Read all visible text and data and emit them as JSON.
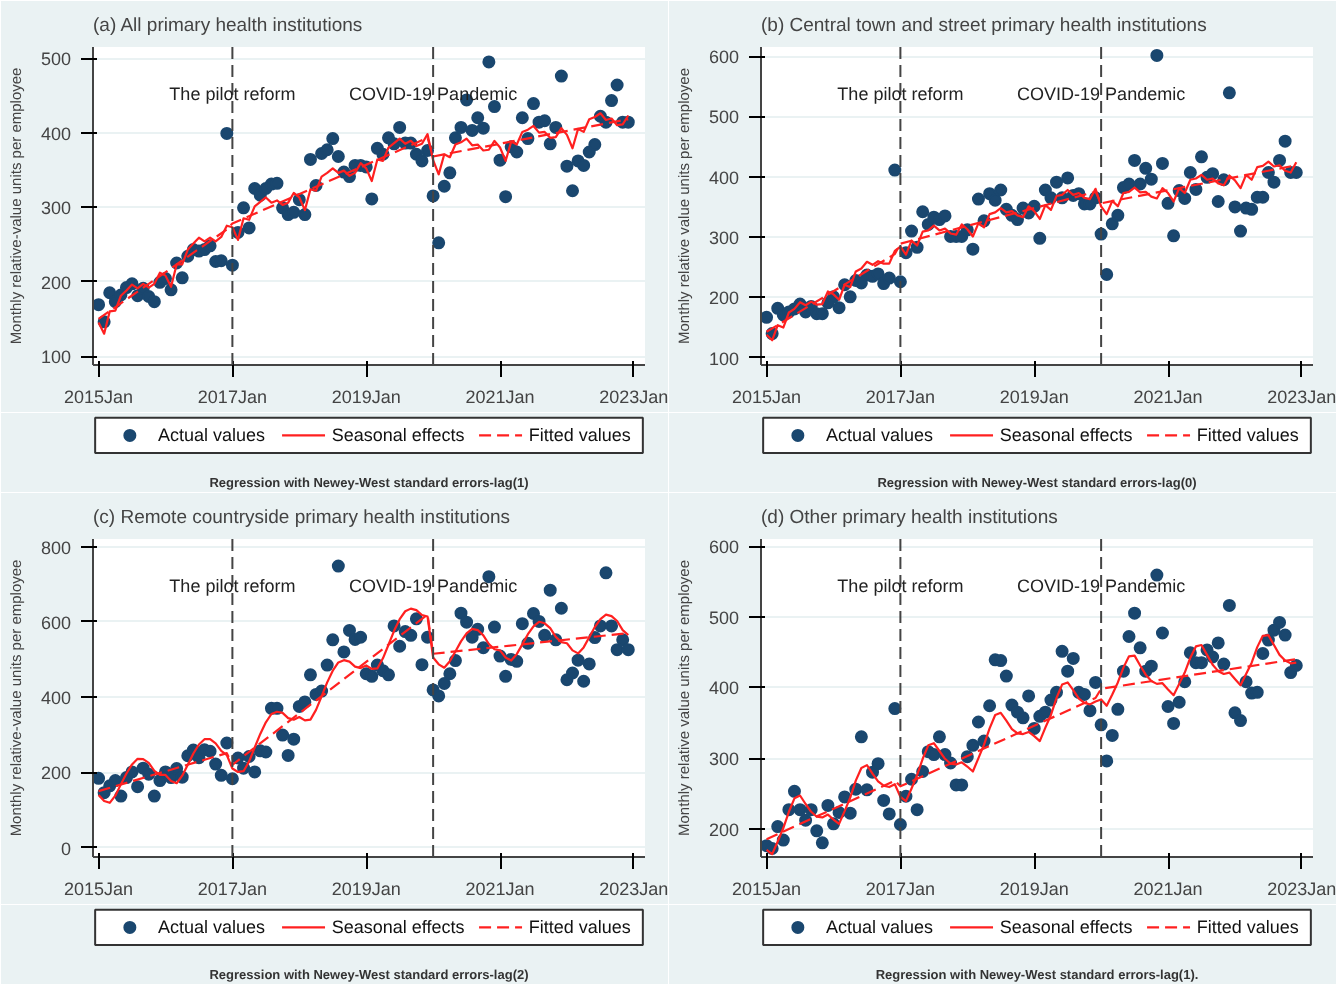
{
  "chart_data": [
    {
      "type": "scatter",
      "title": "(a) All primary health institutions",
      "ylabel": "Monthly relative-value units per employee",
      "annotations": [
        "Regression with Newey-West standard errors-lag(1)"
      ],
      "x": [
        "2015-01",
        "2015-02",
        "2015-03",
        "2015-04",
        "2015-05",
        "2015-06",
        "2015-07",
        "2015-08",
        "2015-09",
        "2015-10",
        "2015-11",
        "2015-12",
        "2016-01",
        "2016-02",
        "2016-03",
        "2016-04",
        "2016-05",
        "2016-06",
        "2016-07",
        "2016-08",
        "2016-09",
        "2016-10",
        "2016-11",
        "2016-12",
        "2017-01",
        "2017-02",
        "2017-03",
        "2017-04",
        "2017-05",
        "2017-06",
        "2017-07",
        "2017-08",
        "2017-09",
        "2017-10",
        "2017-11",
        "2017-12",
        "2018-01",
        "2018-02",
        "2018-03",
        "2018-04",
        "2018-05",
        "2018-06",
        "2018-07",
        "2018-08",
        "2018-09",
        "2018-10",
        "2018-11",
        "2018-12",
        "2019-01",
        "2019-02",
        "2019-03",
        "2019-04",
        "2019-05",
        "2019-06",
        "2019-07",
        "2019-08",
        "2019-09",
        "2019-10",
        "2019-11",
        "2019-12",
        "2020-01",
        "2020-02",
        "2020-03",
        "2020-04",
        "2020-05",
        "2020-06",
        "2020-07",
        "2020-08",
        "2020-09",
        "2020-10",
        "2020-11",
        "2020-12",
        "2021-01",
        "2021-02",
        "2021-03",
        "2021-04",
        "2021-05",
        "2021-06",
        "2021-07",
        "2021-08",
        "2021-09",
        "2021-10",
        "2021-11",
        "2021-12",
        "2022-01",
        "2022-02",
        "2022-03",
        "2022-04",
        "2022-05",
        "2022-06",
        "2022-07",
        "2022-08",
        "2022-09",
        "2022-10",
        "2022-11",
        "2022-12"
      ],
      "series": [
        {
          "name": "Actual values",
          "marker": "circle",
          "color": "#1a476f",
          "values": [
            169,
            146,
            185,
            173,
            182,
            192,
            197,
            181,
            191,
            180,
            173,
            199,
            204,
            189,
            225,
            205,
            234,
            243,
            241,
            243,
            248,
            227,
            228,
            399,
            222,
            266,
            299,
            272,
            325,
            316,
            325,
            331,
            332,
            299,
            290,
            293,
            310,
            290,
            364,
            329,
            372,
            377,
            392,
            368,
            347,
            341,
            356,
            356,
            354,
            311,
            379,
            371,
            393,
            385,
            407,
            386,
            386,
            371,
            362,
            376,
            315,
            252,
            328,
            346,
            393,
            407,
            444,
            403,
            420,
            406,
            495,
            435,
            363,
            314,
            381,
            374,
            420,
            392,
            439,
            414,
            416,
            385,
            407,
            476,
            355,
            322,
            362,
            356,
            374,
            384,
            422,
            414,
            443,
            464,
            414,
            414
          ]
        },
        {
          "name": "Seasonal effects",
          "type": "line",
          "line_style": "solid",
          "color": "#ff2020",
          "values": [
            145,
            130,
            160,
            161,
            181,
            188,
            196,
            191,
            197,
            192,
            197,
            212,
            208,
            193,
            223,
            223,
            243,
            251,
            259,
            254,
            259,
            254,
            260,
            275,
            273,
            256,
            285,
            283,
            301,
            307,
            313,
            306,
            309,
            303,
            306,
            319,
            313,
            296,
            324,
            322,
            341,
            346,
            352,
            346,
            349,
            342,
            346,
            359,
            352,
            335,
            364,
            362,
            380,
            386,
            392,
            385,
            389,
            382,
            385,
            398,
            363,
            344,
            371,
            367,
            384,
            387,
            392,
            383,
            384,
            376,
            377,
            389,
            380,
            362,
            388,
            384,
            401,
            404,
            409,
            400,
            401,
            393,
            394,
            406,
            397,
            379,
            405,
            401,
            418,
            421,
            426,
            417,
            419,
            410,
            411,
            423
          ]
        },
        {
          "name": "Fitted values",
          "type": "line",
          "line_style": "dashed",
          "color": "#ff2020",
          "x": [
            "2015-01",
            "2016-12",
            "2017-01",
            "2019-12",
            "2020-01",
            "2022-12"
          ],
          "values": [
            150,
            270,
            278,
            393,
            368,
            418
          ]
        }
      ],
      "xlim": [
        "2014-12",
        "2023-03"
      ],
      "xticks": [
        {
          "value": "2015-01",
          "label": "2015Jan"
        },
        {
          "value": "2017-01",
          "label": "2017Jan"
        },
        {
          "value": "2019-01",
          "label": "2019Jan"
        },
        {
          "value": "2021-01",
          "label": "2021Jan"
        },
        {
          "value": "2023-01",
          "label": "2023Jan"
        }
      ],
      "ylim": [
        88,
        515
      ],
      "yticks": [
        100,
        200,
        300,
        400,
        500
      ],
      "grid": "y",
      "legend": "bottom",
      "ref_lines": [
        {
          "axis": "x",
          "value": "2017-01",
          "label": "The pilot reform",
          "color": "#444444",
          "line_style": "dashed"
        },
        {
          "axis": "x",
          "value": "2020-01",
          "label": "COVID-19 Pandemic",
          "color": "#444444",
          "line_style": "dashed"
        }
      ]
    },
    {
      "type": "scatter",
      "title": "(b) Central town and street primary health institutions",
      "ylabel": "Monthly relative value units per employee",
      "annotations": [
        "Regression with Newey-West standard errors-lag(0)"
      ],
      "x": [
        "2015-01",
        "2015-02",
        "2015-03",
        "2015-04",
        "2015-05",
        "2015-06",
        "2015-07",
        "2015-08",
        "2015-09",
        "2015-10",
        "2015-11",
        "2015-12",
        "2016-01",
        "2016-02",
        "2016-03",
        "2016-04",
        "2016-05",
        "2016-06",
        "2016-07",
        "2016-08",
        "2016-09",
        "2016-10",
        "2016-11",
        "2016-12",
        "2017-01",
        "2017-02",
        "2017-03",
        "2017-04",
        "2017-05",
        "2017-06",
        "2017-07",
        "2017-08",
        "2017-09",
        "2017-10",
        "2017-11",
        "2017-12",
        "2018-01",
        "2018-02",
        "2018-03",
        "2018-04",
        "2018-05",
        "2018-06",
        "2018-07",
        "2018-08",
        "2018-09",
        "2018-10",
        "2018-11",
        "2018-12",
        "2019-01",
        "2019-02",
        "2019-03",
        "2019-04",
        "2019-05",
        "2019-06",
        "2019-07",
        "2019-08",
        "2019-09",
        "2019-10",
        "2019-11",
        "2019-12",
        "2020-01",
        "2020-02",
        "2020-03",
        "2020-04",
        "2020-05",
        "2020-06",
        "2020-07",
        "2020-08",
        "2020-09",
        "2020-10",
        "2020-11",
        "2020-12",
        "2021-01",
        "2021-02",
        "2021-03",
        "2021-04",
        "2021-05",
        "2021-06",
        "2021-07",
        "2021-08",
        "2021-09",
        "2021-10",
        "2021-11",
        "2021-12",
        "2022-01",
        "2022-02",
        "2022-03",
        "2022-04",
        "2022-05",
        "2022-06",
        "2022-07",
        "2022-08",
        "2022-09",
        "2022-10",
        "2022-11",
        "2022-12"
      ],
      "series": [
        {
          "name": "Actual values",
          "marker": "circle",
          "color": "#1a476f",
          "values": [
            167,
            140,
            182,
            171,
            176,
            181,
            189,
            176,
            185,
            173,
            173,
            191,
            201,
            183,
            221,
            201,
            228,
            224,
            237,
            235,
            239,
            223,
            232,
            411,
            226,
            274,
            310,
            283,
            342,
            321,
            333,
            329,
            335,
            301,
            301,
            301,
            312,
            280,
            363,
            327,
            372,
            361,
            378,
            346,
            336,
            329,
            348,
            340,
            351,
            298,
            378,
            365,
            391,
            365,
            398,
            369,
            372,
            355,
            355,
            365,
            305,
            238,
            322,
            336,
            382,
            388,
            427,
            388,
            414,
            396,
            601,
            422,
            356,
            302,
            377,
            364,
            407,
            379,
            433,
            399,
            405,
            359,
            395,
            539,
            350,
            310,
            348,
            346,
            366,
            366,
            407,
            391,
            427,
            459,
            407,
            407
          ]
        },
        {
          "name": "Seasonal effects",
          "type": "line",
          "line_style": "solid",
          "color": "#ff2020",
          "values": [
            138,
            129,
            154,
            150,
            175,
            181,
            192,
            187,
            193,
            188,
            189,
            210,
            205,
            196,
            221,
            217,
            243,
            248,
            259,
            254,
            260,
            256,
            256,
            277,
            284,
            271,
            294,
            286,
            309,
            311,
            319,
            311,
            314,
            306,
            304,
            321,
            313,
            301,
            323,
            316,
            338,
            341,
            348,
            341,
            343,
            336,
            333,
            351,
            343,
            330,
            353,
            345,
            368,
            370,
            378,
            370,
            373,
            365,
            363,
            380,
            351,
            338,
            360,
            351,
            373,
            375,
            382,
            374,
            375,
            367,
            364,
            381,
            373,
            359,
            381,
            373,
            395,
            397,
            403,
            395,
            397,
            389,
            386,
            402,
            394,
            381,
            403,
            395,
            416,
            418,
            425,
            417,
            419,
            410,
            407,
            424
          ]
        },
        {
          "name": "Fitted values",
          "type": "line",
          "line_style": "dashed",
          "color": "#ff2020",
          "x": [
            "2015-01",
            "2016-12",
            "2017-01",
            "2019-12",
            "2020-01",
            "2022-12"
          ],
          "values": [
            143,
            272,
            289,
            375,
            356,
            419
          ]
        }
      ],
      "xlim": [
        "2014-12",
        "2023-03"
      ],
      "xticks": [
        {
          "value": "2015-01",
          "label": "2015Jan"
        },
        {
          "value": "2017-01",
          "label": "2017Jan"
        },
        {
          "value": "2019-01",
          "label": "2019Jan"
        },
        {
          "value": "2021-01",
          "label": "2021Jan"
        },
        {
          "value": "2023-01",
          "label": "2023Jan"
        }
      ],
      "ylim": [
        88,
        615
      ],
      "yticks": [
        100,
        200,
        300,
        400,
        500,
        600
      ],
      "grid": "y",
      "legend": "bottom",
      "ref_lines": [
        {
          "axis": "x",
          "value": "2017-01",
          "label": "The pilot reform",
          "color": "#444444",
          "line_style": "dashed"
        },
        {
          "axis": "x",
          "value": "2020-01",
          "label": "COVID-19 Pandemic",
          "color": "#444444",
          "line_style": "dashed"
        }
      ]
    },
    {
      "type": "scatter",
      "title": "(c) Remote countryside primary health institutions",
      "ylabel": "Monthly relative-value units per employee",
      "annotations": [
        "Regression with Newey-West standard errors-lag(2)"
      ],
      "x": [
        "2015-01",
        "2015-02",
        "2015-03",
        "2015-04",
        "2015-05",
        "2015-06",
        "2015-07",
        "2015-08",
        "2015-09",
        "2015-10",
        "2015-11",
        "2015-12",
        "2016-01",
        "2016-02",
        "2016-03",
        "2016-04",
        "2016-05",
        "2016-06",
        "2016-07",
        "2016-08",
        "2016-09",
        "2016-10",
        "2016-11",
        "2016-12",
        "2017-01",
        "2017-02",
        "2017-03",
        "2017-04",
        "2017-05",
        "2017-06",
        "2017-07",
        "2017-08",
        "2017-09",
        "2017-10",
        "2017-11",
        "2017-12",
        "2018-01",
        "2018-02",
        "2018-03",
        "2018-04",
        "2018-05",
        "2018-06",
        "2018-07",
        "2018-08",
        "2018-09",
        "2018-10",
        "2018-11",
        "2018-12",
        "2019-01",
        "2019-02",
        "2019-03",
        "2019-04",
        "2019-05",
        "2019-06",
        "2019-07",
        "2019-08",
        "2019-09",
        "2019-10",
        "2019-11",
        "2019-12",
        "2020-01",
        "2020-02",
        "2020-03",
        "2020-04",
        "2020-05",
        "2020-06",
        "2020-07",
        "2020-08",
        "2020-09",
        "2020-10",
        "2020-11",
        "2020-12",
        "2021-01",
        "2021-02",
        "2021-03",
        "2021-04",
        "2021-05",
        "2021-06",
        "2021-07",
        "2021-08",
        "2021-09",
        "2021-10",
        "2021-11",
        "2021-12",
        "2022-01",
        "2022-02",
        "2022-03",
        "2022-04",
        "2022-05",
        "2022-06",
        "2022-07",
        "2022-08",
        "2022-09",
        "2022-10",
        "2022-11",
        "2022-12"
      ],
      "series": [
        {
          "name": "Actual values",
          "marker": "circle",
          "color": "#1a476f",
          "values": [
            184,
            146,
            164,
            178,
            137,
            186,
            201,
            162,
            211,
            195,
            137,
            178,
            201,
            186,
            210,
            187,
            244,
            259,
            239,
            260,
            256,
            222,
            192,
            278,
            183,
            238,
            211,
            242,
            201,
            257,
            254,
            370,
            370,
            299,
            245,
            288,
            375,
            387,
            459,
            407,
            416,
            485,
            552,
            748,
            520,
            577,
            553,
            559,
            462,
            455,
            485,
            470,
            459,
            589,
            535,
            574,
            564,
            608,
            486,
            559,
            419,
            403,
            436,
            462,
            497,
            623,
            599,
            559,
            580,
            531,
            720,
            586,
            509,
            455,
            500,
            495,
            595,
            543,
            622,
            601,
            564,
            684,
            552,
            636,
            446,
            464,
            498,
            442,
            488,
            558,
            589,
            730,
            589,
            526,
            552,
            526
          ]
        },
        {
          "name": "Seasonal effects",
          "type": "line",
          "line_style": "solid",
          "color": "#ff2020",
          "values": [
            140,
            124,
            119,
            138,
            168,
            197,
            221,
            236,
            235,
            225,
            204,
            193,
            193,
            177,
            171,
            191,
            220,
            250,
            274,
            288,
            288,
            277,
            257,
            246,
            210,
            201,
            203,
            229,
            266,
            302,
            333,
            355,
            361,
            358,
            344,
            340,
            347,
            338,
            340,
            366,
            402,
            439,
            470,
            492,
            498,
            494,
            481,
            477,
            484,
            475,
            476,
            503,
            539,
            576,
            607,
            628,
            635,
            631,
            618,
            614,
            505,
            487,
            478,
            495,
            521,
            548,
            569,
            581,
            578,
            564,
            541,
            527,
            524,
            505,
            497,
            514,
            540,
            567,
            588,
            600,
            596,
            583,
            560,
            546,
            543,
            524,
            516,
            532,
            559,
            586,
            607,
            619,
            615,
            602,
            578,
            565
          ]
        },
        {
          "name": "Fitted values",
          "type": "line",
          "line_style": "dashed",
          "color": "#ff2020",
          "x": [
            "2015-01",
            "2016-12",
            "2017-01",
            "2019-12",
            "2020-01",
            "2022-12"
          ],
          "values": [
            150,
            251,
            220,
            619,
            515,
            570
          ]
        }
      ],
      "xlim": [
        "2014-12",
        "2023-03"
      ],
      "xticks": [
        {
          "value": "2015-01",
          "label": "2015Jan"
        },
        {
          "value": "2017-01",
          "label": "2017Jan"
        },
        {
          "value": "2019-01",
          "label": "2019Jan"
        },
        {
          "value": "2021-01",
          "label": "2021Jan"
        },
        {
          "value": "2023-01",
          "label": "2023Jan"
        }
      ],
      "ylim": [
        -25,
        820
      ],
      "yticks": [
        0,
        200,
        400,
        600,
        800
      ],
      "grid": "y",
      "legend": "bottom",
      "ref_lines": [
        {
          "axis": "x",
          "value": "2017-01",
          "label": "The pilot reform",
          "color": "#444444",
          "line_style": "dashed"
        },
        {
          "axis": "x",
          "value": "2020-01",
          "label": "COVID-19 Pandemic",
          "color": "#444444",
          "line_style": "dashed"
        }
      ]
    },
    {
      "type": "scatter",
      "title": "(d) Other primary health institutions",
      "ylabel": "Monthly relative value units per employee",
      "annotations": [
        "Regression with Newey-West standard errors-lag(1)."
      ],
      "x": [
        "2015-01",
        "2015-02",
        "2015-03",
        "2015-04",
        "2015-05",
        "2015-06",
        "2015-07",
        "2015-08",
        "2015-09",
        "2015-10",
        "2015-11",
        "2015-12",
        "2016-01",
        "2016-02",
        "2016-03",
        "2016-04",
        "2016-05",
        "2016-06",
        "2016-07",
        "2016-08",
        "2016-09",
        "2016-10",
        "2016-11",
        "2016-12",
        "2017-01",
        "2017-02",
        "2017-03",
        "2017-04",
        "2017-05",
        "2017-06",
        "2017-07",
        "2017-08",
        "2017-09",
        "2017-10",
        "2017-11",
        "2017-12",
        "2018-01",
        "2018-02",
        "2018-03",
        "2018-04",
        "2018-05",
        "2018-06",
        "2018-07",
        "2018-08",
        "2018-09",
        "2018-10",
        "2018-11",
        "2018-12",
        "2019-01",
        "2019-02",
        "2019-03",
        "2019-04",
        "2019-05",
        "2019-06",
        "2019-07",
        "2019-08",
        "2019-09",
        "2019-10",
        "2019-11",
        "2019-12",
        "2020-01",
        "2020-02",
        "2020-03",
        "2020-04",
        "2020-05",
        "2020-06",
        "2020-07",
        "2020-08",
        "2020-09",
        "2020-10",
        "2020-11",
        "2020-12",
        "2021-01",
        "2021-02",
        "2021-03",
        "2021-04",
        "2021-05",
        "2021-06",
        "2021-07",
        "2021-08",
        "2021-09",
        "2021-10",
        "2021-11",
        "2021-12",
        "2022-01",
        "2022-02",
        "2022-03",
        "2022-04",
        "2022-05",
        "2022-06",
        "2022-07",
        "2022-08",
        "2022-09",
        "2022-10",
        "2022-11",
        "2022-12"
      ],
      "series": [
        {
          "name": "Actual values",
          "marker": "circle",
          "color": "#1a476f",
          "values": [
            176,
            172,
            203,
            184,
            227,
            253,
            227,
            212,
            227,
            197,
            180,
            233,
            207,
            223,
            245,
            222,
            256,
            330,
            255,
            280,
            292,
            240,
            221,
            370,
            206,
            246,
            270,
            227,
            281,
            309,
            305,
            330,
            305,
            293,
            262,
            262,
            302,
            318,
            351,
            324,
            374,
            439,
            438,
            416,
            375,
            365,
            357,
            388,
            342,
            359,
            365,
            382,
            393,
            451,
            423,
            441,
            393,
            390,
            367,
            407,
            347,
            296,
            332,
            369,
            423,
            472,
            505,
            456,
            423,
            430,
            559,
            477,
            373,
            349,
            379,
            408,
            449,
            435,
            435,
            453,
            443,
            463,
            433,
            516,
            364,
            353,
            408,
            392,
            393,
            448,
            467,
            481,
            492,
            474,
            421,
            431
          ]
        },
        {
          "name": "Seasonal effects",
          "type": "line",
          "line_style": "solid",
          "color": "#ff2020",
          "values": [
            170,
            164,
            182,
            201,
            224,
            243,
            247,
            235,
            224,
            217,
            216,
            220,
            213,
            207,
            225,
            244,
            268,
            286,
            290,
            278,
            267,
            261,
            259,
            263,
            245,
            239,
            257,
            276,
            299,
            318,
            321,
            310,
            299,
            292,
            291,
            294,
            288,
            281,
            300,
            319,
            342,
            361,
            364,
            353,
            341,
            335,
            334,
            337,
            331,
            324,
            343,
            361,
            385,
            404,
            407,
            396,
            384,
            378,
            376,
            380,
            383,
            374,
            390,
            407,
            428,
            444,
            445,
            431,
            418,
            409,
            405,
            406,
            397,
            389,
            405,
            421,
            442,
            458,
            460,
            446,
            432,
            423,
            419,
            421,
            412,
            403,
            419,
            435,
            457,
            473,
            474,
            460,
            446,
            438,
            434,
            435
          ]
        },
        {
          "name": "Fitted values",
          "type": "line",
          "line_style": "dashed",
          "color": "#ff2020",
          "x": [
            "2015-01",
            "2016-12",
            "2017-01",
            "2019-12",
            "2020-01",
            "2022-12"
          ],
          "values": [
            185,
            268,
            260,
            385,
            398,
            440
          ]
        }
      ],
      "xlim": [
        "2014-12",
        "2023-03"
      ],
      "xticks": [
        {
          "value": "2015-01",
          "label": "2015Jan"
        },
        {
          "value": "2017-01",
          "label": "2017Jan"
        },
        {
          "value": "2019-01",
          "label": "2019Jan"
        },
        {
          "value": "2021-01",
          "label": "2021Jan"
        },
        {
          "value": "2023-01",
          "label": "2023Jan"
        }
      ],
      "ylim": [
        160,
        610
      ],
      "yticks": [
        200,
        300,
        400,
        500,
        600
      ],
      "grid": "y",
      "legend": "bottom",
      "ref_lines": [
        {
          "axis": "x",
          "value": "2017-01",
          "label": "The pilot reform",
          "color": "#444444",
          "line_style": "dashed"
        },
        {
          "axis": "x",
          "value": "2020-01",
          "label": "COVID-19 Pandemic",
          "color": "#444444",
          "line_style": "dashed"
        }
      ]
    }
  ]
}
